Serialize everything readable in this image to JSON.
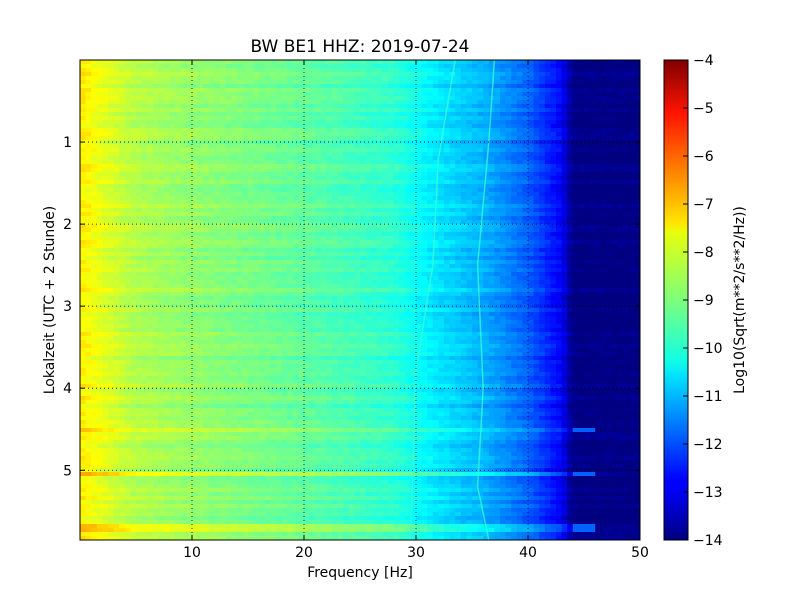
{
  "chart_data": {
    "type": "heatmap",
    "title": "BW BE1 HHZ: 2019-07-24",
    "xlabel": "Frequency [Hz]",
    "ylabel": "Lokalzeit (UTC + 2 Stunde)",
    "colorbar_label": "Log10(Sqrt(m**2/s**2/Hz))",
    "colormap": "jet",
    "x_range": [
      0,
      50
    ],
    "y_range": [
      0,
      5.85
    ],
    "y_inverted": true,
    "x_ticks": [
      "10",
      "20",
      "30",
      "40",
      "50"
    ],
    "x_tick_values": [
      10,
      20,
      30,
      40,
      50
    ],
    "y_ticks": [
      "1",
      "2",
      "3",
      "4",
      "5"
    ],
    "y_tick_values": [
      1,
      2,
      3,
      4,
      5
    ],
    "colorbar_range": [
      -14,
      -4
    ],
    "colorbar_ticks": [
      "−4",
      "−5",
      "−6",
      "−7",
      "−8",
      "−9",
      "−10",
      "−11",
      "−12",
      "−13",
      "−14"
    ],
    "colorbar_tick_values": [
      -4,
      -5,
      -6,
      -7,
      -8,
      -9,
      -10,
      -11,
      -12,
      -13,
      -14
    ],
    "grid": true,
    "spectrum_profile": [
      {
        "freq": 0,
        "value": -7.6
      },
      {
        "freq": 2,
        "value": -8.0
      },
      {
        "freq": 5,
        "value": -8.5
      },
      {
        "freq": 10,
        "value": -8.8
      },
      {
        "freq": 20,
        "value": -9.3
      },
      {
        "freq": 28,
        "value": -9.8
      },
      {
        "freq": 32,
        "value": -10.5
      },
      {
        "freq": 36,
        "value": -11.0
      },
      {
        "freq": 40,
        "value": -11.8
      },
      {
        "freq": 43,
        "value": -12.8
      },
      {
        "freq": 44,
        "value": -14.0
      },
      {
        "freq": 50,
        "value": -14.0
      }
    ],
    "bright_bands_hours": [
      4.5,
      5.05,
      5.7
    ]
  }
}
